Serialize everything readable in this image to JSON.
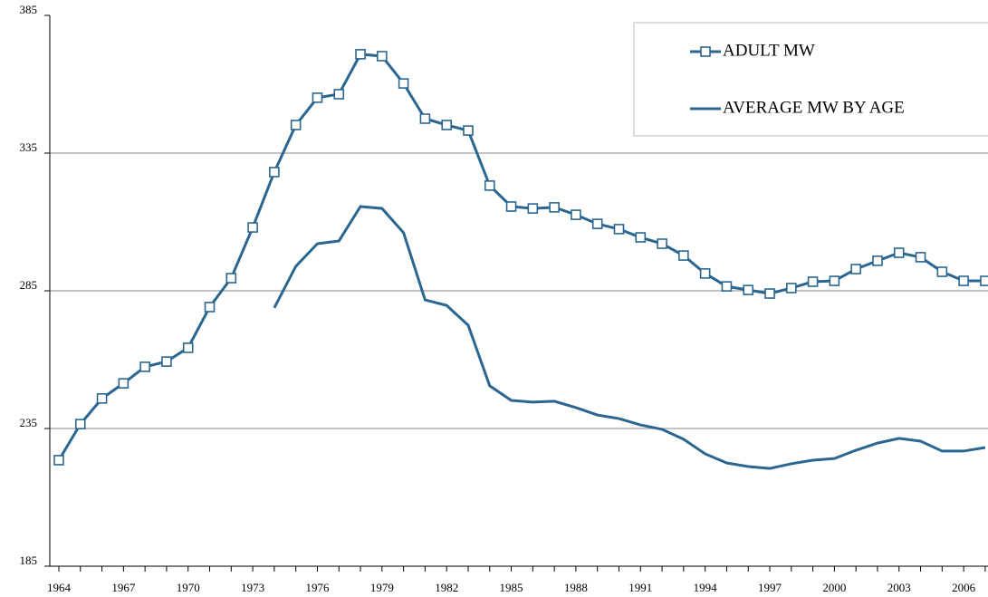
{
  "chart_data": {
    "type": "line",
    "x": [
      1964,
      1965,
      1966,
      1967,
      1968,
      1969,
      1970,
      1971,
      1972,
      1973,
      1974,
      1975,
      1976,
      1977,
      1978,
      1979,
      1980,
      1981,
      1982,
      1983,
      1984,
      1985,
      1986,
      1987,
      1988,
      1989,
      1990,
      1991,
      1992,
      1993,
      1994,
      1995,
      1996,
      1997,
      1998,
      1999,
      2000,
      2001,
      2002,
      2003,
      2004,
      2005,
      2006,
      2007
    ],
    "series": [
      {
        "name": "ADULT MW",
        "color": "#2b6690",
        "marker": "square",
        "values": [
          223.5,
          236.6,
          245.9,
          251.4,
          257.4,
          259.3,
          264.3,
          279.1,
          289.6,
          308.0,
          328.1,
          345.2,
          355.1,
          356.4,
          370.9,
          370.2,
          360.3,
          347.5,
          345.2,
          343.2,
          323.2,
          315.6,
          314.9,
          315.3,
          312.6,
          309.3,
          307.4,
          304.4,
          302.1,
          297.8,
          291.3,
          286.6,
          285.3,
          284.0,
          286.0,
          288.3,
          288.6,
          292.9,
          295.9,
          298.8,
          297.2,
          291.9,
          288.6,
          288.6
        ]
      },
      {
        "name": "AVERAGE MW BY AGE",
        "color": "#2b6690",
        "values": [
          null,
          null,
          null,
          null,
          null,
          null,
          null,
          null,
          null,
          null,
          278.8,
          293.9,
          302.1,
          303.1,
          315.6,
          314.9,
          306.1,
          281.7,
          279.7,
          272.5,
          250.5,
          245.2,
          244.6,
          244.9,
          242.6,
          239.9,
          238.6,
          236.3,
          234.7,
          231.1,
          225.8,
          222.5,
          221.2,
          220.5,
          222.2,
          223.5,
          224.1,
          227.1,
          229.7,
          231.4,
          230.4,
          226.8,
          226.8,
          228.1
        ]
      }
    ],
    "xlim": [
      1963.58,
      2007.13
    ],
    "xticks": [
      1964,
      1967,
      1970,
      1973,
      1976,
      1979,
      1982,
      1985,
      1988,
      1991,
      1994,
      1997,
      2000,
      2003,
      2006
    ],
    "ylim": [
      185,
      385
    ],
    "yticks": [
      185,
      235,
      285,
      335,
      385
    ],
    "grid": true,
    "legend": "upper right"
  }
}
